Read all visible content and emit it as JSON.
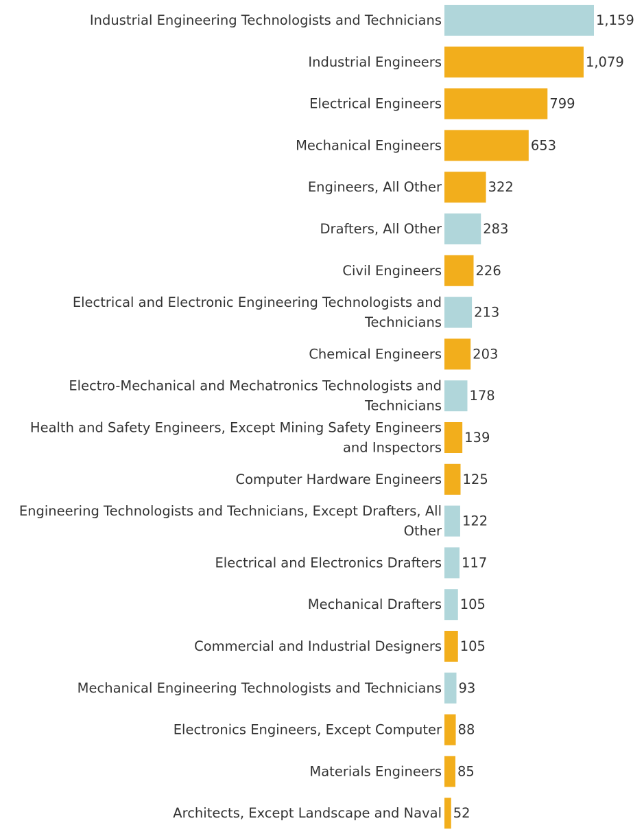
{
  "chart_data": {
    "type": "bar",
    "orientation": "horizontal",
    "title": "",
    "xlabel": "",
    "ylabel": "",
    "xlim": [
      0,
      1159
    ],
    "grid": false,
    "legend": "none",
    "colors": {
      "engineers": "#F2AE1C",
      "technicians": "#B0D6DA"
    },
    "categories": [
      {
        "label_lines": [
          "Industrial Engineering Technologists and Technicians"
        ],
        "value": 1159,
        "display": "1,159",
        "group": "technicians"
      },
      {
        "label_lines": [
          "Industrial Engineers"
        ],
        "value": 1079,
        "display": "1,079",
        "group": "engineers"
      },
      {
        "label_lines": [
          "Electrical Engineers"
        ],
        "value": 799,
        "display": "799",
        "group": "engineers"
      },
      {
        "label_lines": [
          "Mechanical Engineers"
        ],
        "value": 653,
        "display": "653",
        "group": "engineers"
      },
      {
        "label_lines": [
          "Engineers, All Other"
        ],
        "value": 322,
        "display": "322",
        "group": "engineers"
      },
      {
        "label_lines": [
          "Drafters, All Other"
        ],
        "value": 283,
        "display": "283",
        "group": "technicians"
      },
      {
        "label_lines": [
          "Civil Engineers"
        ],
        "value": 226,
        "display": "226",
        "group": "engineers"
      },
      {
        "label_lines": [
          "Electrical and Electronic Engineering Technologists and",
          "Technicians"
        ],
        "value": 213,
        "display": "213",
        "group": "technicians"
      },
      {
        "label_lines": [
          "Chemical Engineers"
        ],
        "value": 203,
        "display": "203",
        "group": "engineers"
      },
      {
        "label_lines": [
          "Electro-Mechanical and Mechatronics Technologists and",
          "Technicians"
        ],
        "value": 178,
        "display": "178",
        "group": "technicians"
      },
      {
        "label_lines": [
          "Health and Safety Engineers, Except Mining Safety Engineers",
          "and Inspectors"
        ],
        "value": 139,
        "display": "139",
        "group": "engineers"
      },
      {
        "label_lines": [
          "Computer Hardware Engineers"
        ],
        "value": 125,
        "display": "125",
        "group": "engineers"
      },
      {
        "label_lines": [
          "Engineering Technologists and Technicians, Except Drafters, All",
          "Other"
        ],
        "value": 122,
        "display": "122",
        "group": "technicians"
      },
      {
        "label_lines": [
          "Electrical and Electronics Drafters"
        ],
        "value": 117,
        "display": "117",
        "group": "technicians"
      },
      {
        "label_lines": [
          "Mechanical Drafters"
        ],
        "value": 105,
        "display": "105",
        "group": "technicians"
      },
      {
        "label_lines": [
          "Commercial and Industrial Designers"
        ],
        "value": 105,
        "display": "105",
        "group": "engineers"
      },
      {
        "label_lines": [
          "Mechanical Engineering Technologists and Technicians"
        ],
        "value": 93,
        "display": "93",
        "group": "technicians"
      },
      {
        "label_lines": [
          "Electronics Engineers, Except Computer"
        ],
        "value": 88,
        "display": "88",
        "group": "engineers"
      },
      {
        "label_lines": [
          "Materials Engineers"
        ],
        "value": 85,
        "display": "85",
        "group": "engineers"
      },
      {
        "label_lines": [
          "Architects, Except Landscape and Naval"
        ],
        "value": 52,
        "display": "52",
        "group": "engineers"
      }
    ]
  }
}
